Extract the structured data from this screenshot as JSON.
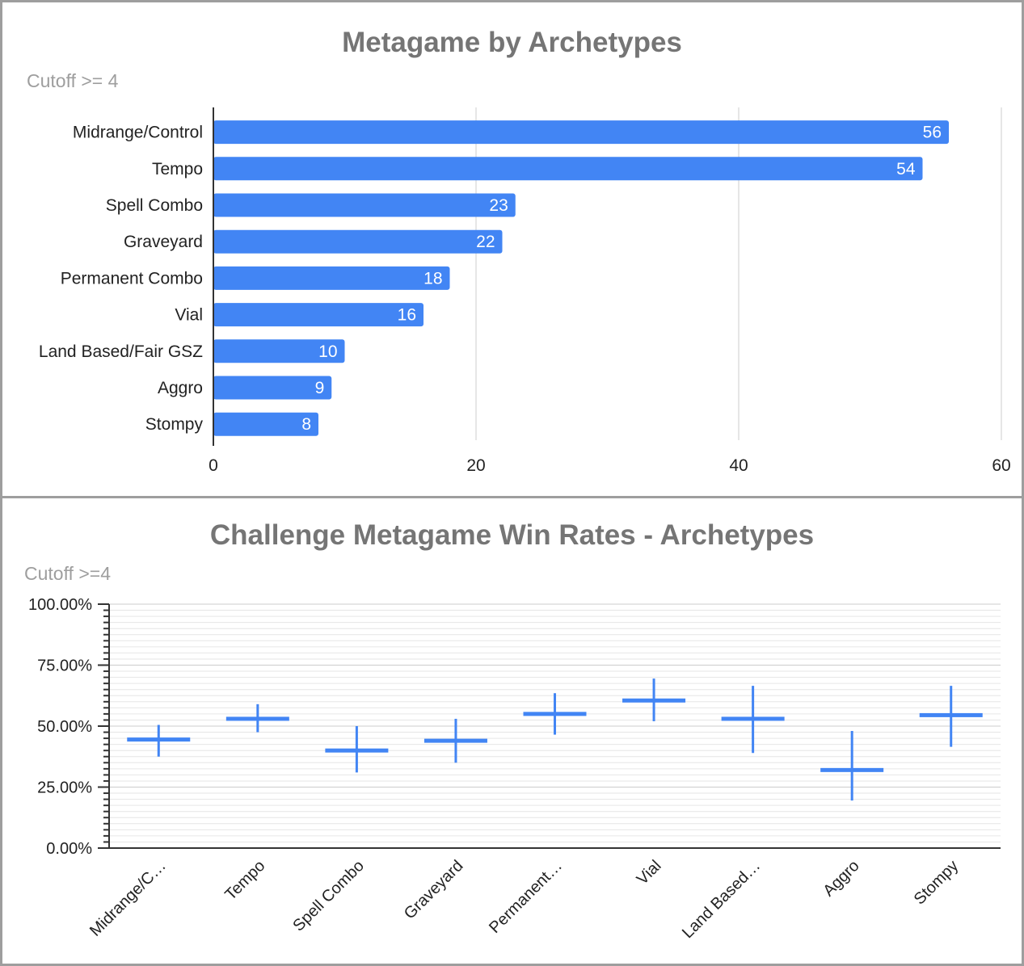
{
  "colors": {
    "bar": "#4285f4",
    "grid": "#cccccc",
    "minor_grid": "#e6e6e6",
    "axis": "#333333",
    "title": "#757575",
    "subtitle": "#9e9e9e"
  },
  "chart_data": [
    {
      "type": "bar",
      "orientation": "horizontal",
      "title": "Metagame by Archetypes",
      "subtitle": "Cutoff >= 4",
      "categories": [
        "Midrange/Control",
        "Tempo",
        "Spell Combo",
        "Graveyard",
        "Permanent Combo",
        "Vial",
        "Land Based/Fair GSZ",
        "Aggro",
        "Stompy"
      ],
      "values": [
        56,
        54,
        23,
        22,
        18,
        16,
        10,
        9,
        8
      ],
      "data_labels": [
        "56",
        "54",
        "23",
        "22",
        "18",
        "16",
        "10",
        "9",
        "8"
      ],
      "xlim": [
        0,
        60
      ],
      "x_ticks": [
        0,
        20,
        40,
        60
      ],
      "x_tick_labels": [
        "0",
        "20",
        "40",
        "60"
      ],
      "grid": true,
      "legend": "none"
    },
    {
      "type": "scatter",
      "style": "error-bar crosses",
      "title": "Challenge Metagame Win Rates - Archetypes",
      "subtitle": "Cutoff >=4",
      "categories": [
        "Midrange/Control",
        "Tempo",
        "Spell Combo",
        "Graveyard",
        "Permanent Combo",
        "Vial",
        "Land Based/Fair GSZ",
        "Aggro",
        "Stompy"
      ],
      "category_labels": [
        "Midrange/C…",
        "Tempo",
        "Spell Combo",
        "Graveyard",
        "Permanent…",
        "Vial",
        "Land Based…",
        "Aggro",
        "Stompy"
      ],
      "values": [
        44.5,
        53.0,
        40.0,
        44.0,
        55.0,
        60.5,
        53.0,
        32.0,
        54.5
      ],
      "low": [
        37.5,
        47.5,
        31.0,
        35.0,
        46.5,
        52.0,
        39.0,
        19.5,
        41.5
      ],
      "high": [
        50.5,
        59.0,
        50.0,
        53.0,
        63.5,
        69.5,
        66.5,
        48.0,
        66.5
      ],
      "ylim": [
        0,
        100
      ],
      "y_ticks": [
        0,
        25,
        50,
        75,
        100
      ],
      "y_tick_labels": [
        "0.00%",
        "25.00%",
        "50.00%",
        "75.00%",
        "100.00%"
      ],
      "grid": true,
      "legend": "none"
    }
  ]
}
